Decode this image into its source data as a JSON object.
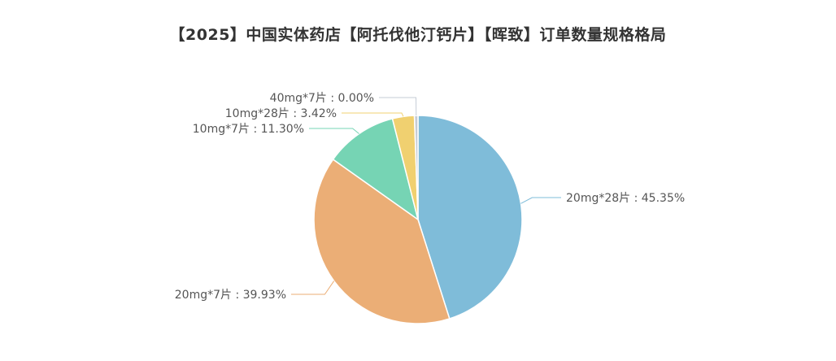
{
  "chart_data": {
    "type": "pie",
    "title": "【2025】中国实体药店【阿托伐他汀钙片】【晖致】订单数量规格格局",
    "slices": [
      {
        "label": "20mg*28片",
        "value": 45.35,
        "display": "20mg*28片 : 45.35%",
        "color": "#7fbcd9"
      },
      {
        "label": "20mg*7片",
        "value": 39.93,
        "display": "20mg*7片 : 39.93%",
        "color": "#ebae76"
      },
      {
        "label": "10mg*7片",
        "value": 11.3,
        "display": "10mg*7片 : 11.30%",
        "color": "#76d4b4"
      },
      {
        "label": "10mg*28片",
        "value": 3.42,
        "display": "10mg*28片 : 3.42%",
        "color": "#f0d070"
      },
      {
        "label": "40mg*7片",
        "value": 0.0,
        "display": "40mg*7片 : 0.00%",
        "color": "#c5ccd6"
      }
    ]
  }
}
